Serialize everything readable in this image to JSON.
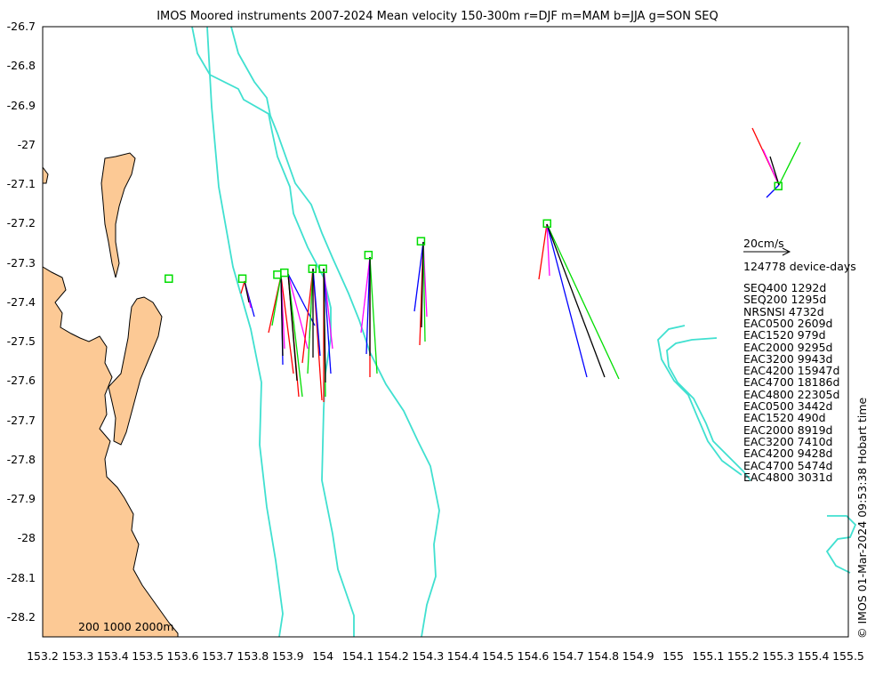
{
  "title": "IMOS Moored instruments 2007-2024 Mean velocity 150-300m r=DJF m=MAM b=JJA g=SON SEQ",
  "axes": {
    "x_ticks": [
      "153.2",
      "153.3",
      "153.4",
      "153.5",
      "153.6",
      "153.7",
      "153.8",
      "153.9",
      "154",
      "154.1",
      "154.2",
      "154.3",
      "154.4",
      "154.5",
      "154.6",
      "154.7",
      "154.8",
      "154.9",
      "155",
      "155.1",
      "155.2",
      "155.3",
      "155.4",
      "155.5"
    ],
    "y_ticks": [
      "-26.7",
      "-26.8",
      "-26.9",
      "-27",
      "-27.1",
      "-27.2",
      "-27.3",
      "-27.4",
      "-27.5",
      "-27.6",
      "-27.7",
      "-27.8",
      "-27.9",
      "-28",
      "-28.1",
      "-28.2"
    ],
    "xlim": [
      153.2,
      155.5
    ],
    "ylim": [
      -28.25,
      -26.7
    ]
  },
  "scale": {
    "label": "20cm/s",
    "device_days": "124778 device-days"
  },
  "contour_label": "200 1000 2000m",
  "credit": "© IMOS 01-Mar-2024 09:53:38 Hobart time",
  "moorings": [
    "SEQ400 1292d",
    "SEQ200 1295d",
    "NRSNSI 4732d",
    "EAC0500 2609d",
    "EAC1520 979d",
    "EAC2000 9295d",
    "EAC3200 9943d",
    "EAC4200 15947d",
    "EAC4700 18186d",
    "EAC4800 22305d",
    "EAC0500 3442d",
    "EAC1520 490d",
    "EAC2000 8919d",
    "EAC3200 7410d",
    "EAC4200 9428d",
    "EAC4700 5474d",
    "EAC4800 3031d"
  ],
  "colors": {
    "land": "#fcc995",
    "isobath": "#40e0d0",
    "site": "#00dd00",
    "djf": "#ff0000",
    "mam": "#ff00ff",
    "jja": "#0000ff",
    "son": "#00dd00",
    "mean": "#000000"
  },
  "chart_data": {
    "type": "map",
    "sites": [
      {
        "lon": 153.56,
        "lat": -27.34
      },
      {
        "lon": 153.77,
        "lat": -27.34
      },
      {
        "lon": 153.87,
        "lat": -27.33
      },
      {
        "lon": 153.89,
        "lat": -27.325
      },
      {
        "lon": 153.97,
        "lat": -27.315
      },
      {
        "lon": 154.0,
        "lat": -27.315
      },
      {
        "lon": 154.13,
        "lat": -27.28
      },
      {
        "lon": 154.28,
        "lat": -27.245
      },
      {
        "lon": 154.64,
        "lat": -27.2
      },
      {
        "lon": 155.3,
        "lat": -27.105
      }
    ]
  }
}
